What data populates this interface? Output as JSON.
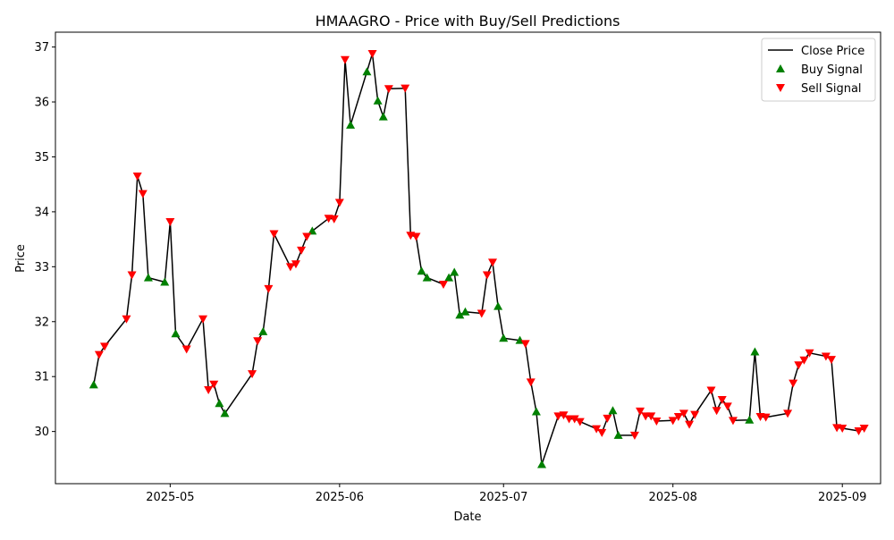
{
  "chart_data": {
    "type": "line",
    "title": "HMAAGRO - Price with Buy/Sell Predictions",
    "xlabel": "Date",
    "ylabel": "Price",
    "xlim": [
      "2025-04-10",
      "2025-09-08"
    ],
    "ylim": [
      29.05,
      37.27
    ],
    "grid": false,
    "legend_position": "upper right",
    "x_ticks": [
      "2025-05-01",
      "2025-06-01",
      "2025-07-01",
      "2025-08-01",
      "2025-09-01"
    ],
    "x_tick_labels": [
      "2025-05",
      "2025-06",
      "2025-07",
      "2025-08",
      "2025-09"
    ],
    "y_ticks": [
      30,
      31,
      32,
      33,
      34,
      35,
      36,
      37
    ],
    "y_tick_labels": [
      "30",
      "31",
      "32",
      "33",
      "34",
      "35",
      "36",
      "37"
    ],
    "legend": [
      "Close Price",
      "Buy Signal",
      "Sell Signal"
    ],
    "colors": {
      "line": "#000000",
      "buy": "#008000",
      "sell": "#ff0000"
    },
    "series": [
      {
        "name": "Close Price",
        "points": [
          [
            "2025-04-17",
            30.85
          ],
          [
            "2025-04-18",
            31.4
          ],
          [
            "2025-04-19",
            31.55
          ],
          [
            "2025-04-23",
            32.05
          ],
          [
            "2025-04-24",
            32.85
          ],
          [
            "2025-04-25",
            34.65
          ],
          [
            "2025-04-26",
            34.33
          ],
          [
            "2025-04-27",
            32.8
          ],
          [
            "2025-04-30",
            32.72
          ],
          [
            "2025-05-01",
            33.82
          ],
          [
            "2025-05-02",
            31.78
          ],
          [
            "2025-05-04",
            31.5
          ],
          [
            "2025-05-07",
            32.05
          ],
          [
            "2025-05-08",
            30.76
          ],
          [
            "2025-05-09",
            30.86
          ],
          [
            "2025-05-10",
            30.51
          ],
          [
            "2025-05-11",
            30.33
          ],
          [
            "2025-05-16",
            31.05
          ],
          [
            "2025-05-17",
            31.65
          ],
          [
            "2025-05-18",
            31.82
          ],
          [
            "2025-05-19",
            32.6
          ],
          [
            "2025-05-20",
            33.6
          ],
          [
            "2025-05-23",
            33.0
          ],
          [
            "2025-05-24",
            33.05
          ],
          [
            "2025-05-25",
            33.3
          ],
          [
            "2025-05-26",
            33.55
          ],
          [
            "2025-05-27",
            33.65
          ],
          [
            "2025-05-30",
            33.88
          ],
          [
            "2025-05-31",
            33.87
          ],
          [
            "2025-06-01",
            34.17
          ],
          [
            "2025-06-02",
            36.77
          ],
          [
            "2025-06-03",
            35.58
          ],
          [
            "2025-06-06",
            36.55
          ],
          [
            "2025-06-07",
            36.88
          ],
          [
            "2025-06-08",
            36.02
          ],
          [
            "2025-06-09",
            35.73
          ],
          [
            "2025-06-10",
            36.24
          ],
          [
            "2025-06-13",
            36.25
          ],
          [
            "2025-06-14",
            33.57
          ],
          [
            "2025-06-15",
            33.55
          ],
          [
            "2025-06-16",
            32.92
          ],
          [
            "2025-06-17",
            32.8
          ],
          [
            "2025-06-20",
            32.68
          ],
          [
            "2025-06-21",
            32.8
          ],
          [
            "2025-06-22",
            32.9
          ],
          [
            "2025-06-23",
            32.12
          ],
          [
            "2025-06-24",
            32.18
          ],
          [
            "2025-06-27",
            32.15
          ],
          [
            "2025-06-28",
            32.85
          ],
          [
            "2025-06-29",
            33.08
          ],
          [
            "2025-06-30",
            32.28
          ],
          [
            "2025-07-01",
            31.7
          ],
          [
            "2025-07-04",
            31.66
          ],
          [
            "2025-07-05",
            31.6
          ],
          [
            "2025-07-06",
            30.9
          ],
          [
            "2025-07-07",
            30.36
          ],
          [
            "2025-07-08",
            29.4
          ],
          [
            "2025-07-11",
            30.28
          ],
          [
            "2025-07-12",
            30.3
          ],
          [
            "2025-07-13",
            30.23
          ],
          [
            "2025-07-14",
            30.23
          ],
          [
            "2025-07-15",
            30.18
          ],
          [
            "2025-07-18",
            30.05
          ],
          [
            "2025-07-19",
            29.98
          ],
          [
            "2025-07-20",
            30.24
          ],
          [
            "2025-07-21",
            30.38
          ],
          [
            "2025-07-22",
            29.93
          ],
          [
            "2025-07-25",
            29.93
          ],
          [
            "2025-07-26",
            30.37
          ],
          [
            "2025-07-27",
            30.28
          ],
          [
            "2025-07-28",
            30.28
          ],
          [
            "2025-07-29",
            30.19
          ],
          [
            "2025-08-01",
            30.2
          ],
          [
            "2025-08-02",
            30.27
          ],
          [
            "2025-08-03",
            30.33
          ],
          [
            "2025-08-04",
            30.13
          ],
          [
            "2025-08-05",
            30.31
          ],
          [
            "2025-08-08",
            30.75
          ],
          [
            "2025-08-09",
            30.38
          ],
          [
            "2025-08-10",
            30.58
          ],
          [
            "2025-08-11",
            30.46
          ],
          [
            "2025-08-12",
            30.2
          ],
          [
            "2025-08-15",
            30.21
          ],
          [
            "2025-08-16",
            31.45
          ],
          [
            "2025-08-17",
            30.27
          ],
          [
            "2025-08-18",
            30.26
          ],
          [
            "2025-08-22",
            30.33
          ],
          [
            "2025-08-23",
            30.88
          ],
          [
            "2025-08-24",
            31.21
          ],
          [
            "2025-08-25",
            31.3
          ],
          [
            "2025-08-26",
            31.43
          ],
          [
            "2025-08-29",
            31.37
          ],
          [
            "2025-08-30",
            31.31
          ],
          [
            "2025-08-31",
            30.07
          ],
          [
            "2025-09-01",
            30.06
          ],
          [
            "2025-09-04",
            30.01
          ],
          [
            "2025-09-05",
            30.06
          ]
        ]
      },
      {
        "name": "Buy Signal",
        "points": [
          [
            "2025-04-17",
            30.85
          ],
          [
            "2025-04-27",
            32.8
          ],
          [
            "2025-04-30",
            32.72
          ],
          [
            "2025-05-02",
            31.78
          ],
          [
            "2025-05-10",
            30.51
          ],
          [
            "2025-05-11",
            30.33
          ],
          [
            "2025-05-18",
            31.82
          ],
          [
            "2025-05-27",
            33.65
          ],
          [
            "2025-06-03",
            35.58
          ],
          [
            "2025-06-06",
            36.55
          ],
          [
            "2025-06-08",
            36.02
          ],
          [
            "2025-06-09",
            35.73
          ],
          [
            "2025-06-16",
            32.92
          ],
          [
            "2025-06-17",
            32.8
          ],
          [
            "2025-06-21",
            32.8
          ],
          [
            "2025-06-22",
            32.9
          ],
          [
            "2025-06-23",
            32.12
          ],
          [
            "2025-06-24",
            32.18
          ],
          [
            "2025-06-30",
            32.28
          ],
          [
            "2025-07-01",
            31.7
          ],
          [
            "2025-07-04",
            31.66
          ],
          [
            "2025-07-07",
            30.36
          ],
          [
            "2025-07-08",
            29.4
          ],
          [
            "2025-07-21",
            30.38
          ],
          [
            "2025-07-22",
            29.93
          ],
          [
            "2025-08-15",
            30.21
          ],
          [
            "2025-08-16",
            31.45
          ]
        ]
      },
      {
        "name": "Sell Signal",
        "points": [
          [
            "2025-04-18",
            31.4
          ],
          [
            "2025-04-19",
            31.55
          ],
          [
            "2025-04-23",
            32.05
          ],
          [
            "2025-04-24",
            32.85
          ],
          [
            "2025-04-25",
            34.65
          ],
          [
            "2025-04-26",
            34.33
          ],
          [
            "2025-05-01",
            33.82
          ],
          [
            "2025-05-04",
            31.5
          ],
          [
            "2025-05-07",
            32.05
          ],
          [
            "2025-05-08",
            30.76
          ],
          [
            "2025-05-09",
            30.86
          ],
          [
            "2025-05-16",
            31.05
          ],
          [
            "2025-05-17",
            31.65
          ],
          [
            "2025-05-19",
            32.6
          ],
          [
            "2025-05-20",
            33.6
          ],
          [
            "2025-05-23",
            33.0
          ],
          [
            "2025-05-24",
            33.05
          ],
          [
            "2025-05-25",
            33.3
          ],
          [
            "2025-05-26",
            33.55
          ],
          [
            "2025-05-30",
            33.88
          ],
          [
            "2025-05-31",
            33.87
          ],
          [
            "2025-06-01",
            34.17
          ],
          [
            "2025-06-02",
            36.77
          ],
          [
            "2025-06-07",
            36.88
          ],
          [
            "2025-06-10",
            36.24
          ],
          [
            "2025-06-13",
            36.25
          ],
          [
            "2025-06-14",
            33.57
          ],
          [
            "2025-06-15",
            33.55
          ],
          [
            "2025-06-20",
            32.68
          ],
          [
            "2025-06-27",
            32.15
          ],
          [
            "2025-06-28",
            32.85
          ],
          [
            "2025-06-29",
            33.08
          ],
          [
            "2025-07-05",
            31.6
          ],
          [
            "2025-07-06",
            30.9
          ],
          [
            "2025-07-11",
            30.28
          ],
          [
            "2025-07-12",
            30.3
          ],
          [
            "2025-07-13",
            30.23
          ],
          [
            "2025-07-14",
            30.23
          ],
          [
            "2025-07-15",
            30.18
          ],
          [
            "2025-07-18",
            30.05
          ],
          [
            "2025-07-19",
            29.98
          ],
          [
            "2025-07-20",
            30.24
          ],
          [
            "2025-07-25",
            29.93
          ],
          [
            "2025-07-26",
            30.37
          ],
          [
            "2025-07-27",
            30.28
          ],
          [
            "2025-07-28",
            30.28
          ],
          [
            "2025-07-29",
            30.19
          ],
          [
            "2025-08-01",
            30.2
          ],
          [
            "2025-08-02",
            30.27
          ],
          [
            "2025-08-03",
            30.33
          ],
          [
            "2025-08-04",
            30.13
          ],
          [
            "2025-08-05",
            30.31
          ],
          [
            "2025-08-08",
            30.75
          ],
          [
            "2025-08-09",
            30.38
          ],
          [
            "2025-08-10",
            30.58
          ],
          [
            "2025-08-11",
            30.46
          ],
          [
            "2025-08-12",
            30.2
          ],
          [
            "2025-08-17",
            30.27
          ],
          [
            "2025-08-18",
            30.26
          ],
          [
            "2025-08-22",
            30.33
          ],
          [
            "2025-08-23",
            30.88
          ],
          [
            "2025-08-24",
            31.21
          ],
          [
            "2025-08-25",
            31.3
          ],
          [
            "2025-08-26",
            31.43
          ],
          [
            "2025-08-29",
            31.37
          ],
          [
            "2025-08-30",
            31.31
          ],
          [
            "2025-08-31",
            30.07
          ],
          [
            "2025-09-01",
            30.06
          ],
          [
            "2025-09-04",
            30.01
          ],
          [
            "2025-09-05",
            30.06
          ]
        ]
      }
    ]
  }
}
